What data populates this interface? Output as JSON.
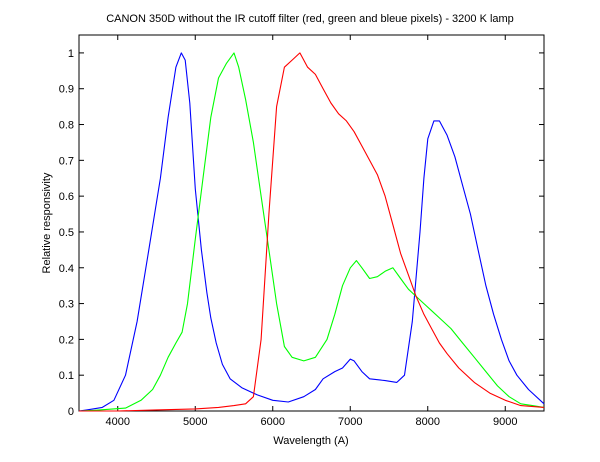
{
  "chart_data": {
    "type": "line",
    "title": "CANON 350D without the IR cutoff filter (red, green and bleue pixels) - 3200 K lamp",
    "xlabel": "Wavelength (A)",
    "ylabel": "Relative responsivity",
    "xlim": [
      3500,
      9500
    ],
    "ylim": [
      0,
      1.05
    ],
    "xticks": [
      4000,
      5000,
      6000,
      7000,
      8000,
      9000
    ],
    "yticks": [
      0,
      0.1,
      0.2,
      0.3,
      0.4,
      0.5,
      0.6,
      0.7,
      0.8,
      0.9,
      1
    ],
    "grid": false,
    "series": [
      {
        "color": "#0000ff",
        "points": [
          [
            3500,
            0.0
          ],
          [
            3600,
            0.003
          ],
          [
            3800,
            0.01
          ],
          [
            3950,
            0.03
          ],
          [
            4100,
            0.1
          ],
          [
            4250,
            0.25
          ],
          [
            4400,
            0.45
          ],
          [
            4550,
            0.65
          ],
          [
            4650,
            0.82
          ],
          [
            4750,
            0.96
          ],
          [
            4820,
            1.0
          ],
          [
            4870,
            0.98
          ],
          [
            4930,
            0.86
          ],
          [
            5000,
            0.62
          ],
          [
            5080,
            0.45
          ],
          [
            5150,
            0.33
          ],
          [
            5200,
            0.26
          ],
          [
            5270,
            0.19
          ],
          [
            5350,
            0.13
          ],
          [
            5450,
            0.09
          ],
          [
            5600,
            0.065
          ],
          [
            5800,
            0.045
          ],
          [
            6000,
            0.03
          ],
          [
            6200,
            0.025
          ],
          [
            6400,
            0.04
          ],
          [
            6550,
            0.06
          ],
          [
            6650,
            0.09
          ],
          [
            6800,
            0.11
          ],
          [
            6900,
            0.12
          ],
          [
            7000,
            0.145
          ],
          [
            7050,
            0.14
          ],
          [
            7150,
            0.11
          ],
          [
            7250,
            0.09
          ],
          [
            7450,
            0.085
          ],
          [
            7600,
            0.08
          ],
          [
            7700,
            0.1
          ],
          [
            7800,
            0.25
          ],
          [
            7900,
            0.5
          ],
          [
            7950,
            0.65
          ],
          [
            8000,
            0.76
          ],
          [
            8080,
            0.81
          ],
          [
            8150,
            0.81
          ],
          [
            8250,
            0.77
          ],
          [
            8350,
            0.71
          ],
          [
            8450,
            0.63
          ],
          [
            8550,
            0.55
          ],
          [
            8650,
            0.45
          ],
          [
            8750,
            0.35
          ],
          [
            8850,
            0.27
          ],
          [
            8950,
            0.2
          ],
          [
            9050,
            0.14
          ],
          [
            9150,
            0.1
          ],
          [
            9300,
            0.06
          ],
          [
            9500,
            0.02
          ]
        ]
      },
      {
        "color": "#00ff00",
        "points": [
          [
            3500,
            0.0
          ],
          [
            3700,
            0.002
          ],
          [
            3900,
            0.005
          ],
          [
            4100,
            0.008
          ],
          [
            4300,
            0.03
          ],
          [
            4450,
            0.06
          ],
          [
            4550,
            0.1
          ],
          [
            4650,
            0.15
          ],
          [
            4750,
            0.19
          ],
          [
            4830,
            0.22
          ],
          [
            4900,
            0.3
          ],
          [
            5000,
            0.48
          ],
          [
            5100,
            0.65
          ],
          [
            5200,
            0.82
          ],
          [
            5300,
            0.93
          ],
          [
            5400,
            0.97
          ],
          [
            5500,
            1.0
          ],
          [
            5560,
            0.96
          ],
          [
            5650,
            0.87
          ],
          [
            5750,
            0.75
          ],
          [
            5850,
            0.6
          ],
          [
            5950,
            0.45
          ],
          [
            6050,
            0.3
          ],
          [
            6150,
            0.18
          ],
          [
            6250,
            0.15
          ],
          [
            6400,
            0.14
          ],
          [
            6550,
            0.15
          ],
          [
            6700,
            0.2
          ],
          [
            6800,
            0.27
          ],
          [
            6900,
            0.35
          ],
          [
            7000,
            0.4
          ],
          [
            7080,
            0.42
          ],
          [
            7150,
            0.4
          ],
          [
            7250,
            0.37
          ],
          [
            7350,
            0.375
          ],
          [
            7450,
            0.39
          ],
          [
            7550,
            0.4
          ],
          [
            7650,
            0.37
          ],
          [
            7750,
            0.34
          ],
          [
            7850,
            0.32
          ],
          [
            7950,
            0.3
          ],
          [
            8050,
            0.28
          ],
          [
            8150,
            0.26
          ],
          [
            8300,
            0.23
          ],
          [
            8450,
            0.19
          ],
          [
            8600,
            0.15
          ],
          [
            8750,
            0.11
          ],
          [
            8900,
            0.07
          ],
          [
            9050,
            0.04
          ],
          [
            9200,
            0.02
          ],
          [
            9350,
            0.015
          ],
          [
            9500,
            0.01
          ]
        ]
      },
      {
        "color": "#ff0000",
        "points": [
          [
            3500,
            0.0
          ],
          [
            4000,
            0.0
          ],
          [
            4500,
            0.003
          ],
          [
            5000,
            0.006
          ],
          [
            5300,
            0.01
          ],
          [
            5500,
            0.015
          ],
          [
            5650,
            0.02
          ],
          [
            5750,
            0.04
          ],
          [
            5850,
            0.2
          ],
          [
            5950,
            0.55
          ],
          [
            6050,
            0.85
          ],
          [
            6150,
            0.96
          ],
          [
            6250,
            0.98
          ],
          [
            6350,
            1.0
          ],
          [
            6450,
            0.96
          ],
          [
            6550,
            0.94
          ],
          [
            6650,
            0.9
          ],
          [
            6750,
            0.86
          ],
          [
            6850,
            0.83
          ],
          [
            6950,
            0.81
          ],
          [
            7050,
            0.78
          ],
          [
            7150,
            0.74
          ],
          [
            7250,
            0.7
          ],
          [
            7350,
            0.66
          ],
          [
            7450,
            0.6
          ],
          [
            7550,
            0.52
          ],
          [
            7650,
            0.44
          ],
          [
            7750,
            0.38
          ],
          [
            7850,
            0.32
          ],
          [
            7950,
            0.27
          ],
          [
            8050,
            0.23
          ],
          [
            8150,
            0.19
          ],
          [
            8250,
            0.16
          ],
          [
            8400,
            0.12
          ],
          [
            8600,
            0.08
          ],
          [
            8800,
            0.05
          ],
          [
            9000,
            0.03
          ],
          [
            9200,
            0.015
          ],
          [
            9500,
            0.01
          ]
        ]
      }
    ]
  }
}
